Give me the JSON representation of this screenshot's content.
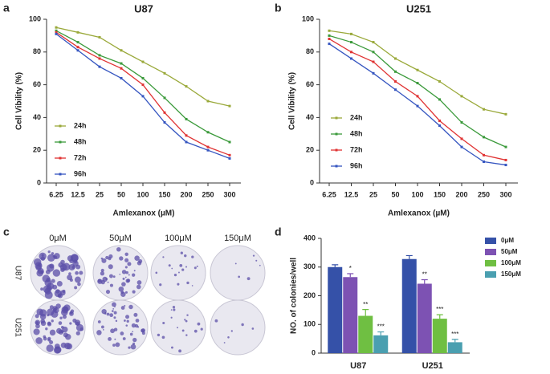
{
  "chart_data": [
    {
      "type": "line",
      "panel": "a",
      "title": "U87",
      "x_label": "Amlexanox (µM)",
      "y_label": "Cell Vibility (%)",
      "categories": [
        "6.25",
        "12.5",
        "25",
        "50",
        "100",
        "150",
        "200",
        "250",
        "300"
      ],
      "ylim": [
        0,
        100
      ],
      "yticks": [
        0,
        20,
        40,
        60,
        80,
        100
      ],
      "series": [
        {
          "name": "24h",
          "color": "#9aa93a",
          "values": [
            95,
            92,
            89,
            81,
            74,
            67,
            59,
            50,
            47
          ]
        },
        {
          "name": "48h",
          "color": "#3b9a3b",
          "values": [
            93,
            86,
            78,
            73,
            64,
            52,
            39,
            31,
            25
          ]
        },
        {
          "name": "72h",
          "color": "#e03333",
          "values": [
            92,
            83,
            76,
            70,
            60,
            43,
            29,
            22,
            17
          ]
        },
        {
          "name": "96h",
          "color": "#3555c0",
          "values": [
            91,
            81,
            71,
            64,
            53,
            37,
            25,
            20,
            15
          ]
        }
      ]
    },
    {
      "type": "line",
      "panel": "b",
      "title": "U251",
      "x_label": "Amlexanox (µM)",
      "y_label": "Cell Vibility (%)",
      "categories": [
        "6.25",
        "12.5",
        "25",
        "50",
        "100",
        "150",
        "200",
        "250",
        "300"
      ],
      "ylim": [
        0,
        100
      ],
      "yticks": [
        0,
        20,
        40,
        60,
        80,
        100
      ],
      "series": [
        {
          "name": "24h",
          "color": "#9aa93a",
          "values": [
            93,
            91,
            86,
            76,
            69,
            62,
            53,
            45,
            42
          ]
        },
        {
          "name": "48h",
          "color": "#3b9a3b",
          "values": [
            90,
            86,
            80,
            68,
            61,
            51,
            37,
            28,
            22
          ]
        },
        {
          "name": "72h",
          "color": "#e03333",
          "values": [
            88,
            80,
            74,
            62,
            53,
            38,
            27,
            17,
            14
          ]
        },
        {
          "name": "96h",
          "color": "#3555c0",
          "values": [
            85,
            76,
            67,
            57,
            47,
            35,
            22,
            13,
            11
          ]
        }
      ]
    },
    {
      "type": "bar",
      "panel": "d",
      "y_label": "NO. of colonies/well",
      "categories": [
        "U87",
        "U251"
      ],
      "ylim": [
        0,
        400
      ],
      "yticks": [
        0,
        100,
        200,
        300,
        400
      ],
      "series": [
        {
          "name": "0μM",
          "color": "#3551a8",
          "values": [
            300,
            328
          ],
          "errors": [
            8,
            12
          ]
        },
        {
          "name": "50μM",
          "color": "#7d52b3",
          "values": [
            265,
            242
          ],
          "errors": [
            12,
            14
          ],
          "significance": [
            "*",
            "**"
          ]
        },
        {
          "name": "100μM",
          "color": "#6fbf42",
          "values": [
            130,
            120
          ],
          "errors": [
            22,
            14
          ],
          "significance": [
            "**",
            "***"
          ]
        },
        {
          "name": "150μM",
          "color": "#4a9fb0",
          "values": [
            62,
            38
          ],
          "errors": [
            12,
            10
          ],
          "significance": [
            "***",
            "***"
          ]
        }
      ]
    }
  ],
  "colony_assay": {
    "panel": "c",
    "columns": [
      "0μM",
      "50μM",
      "100μM",
      "150μM"
    ],
    "rows": [
      "U87",
      "U251"
    ]
  }
}
